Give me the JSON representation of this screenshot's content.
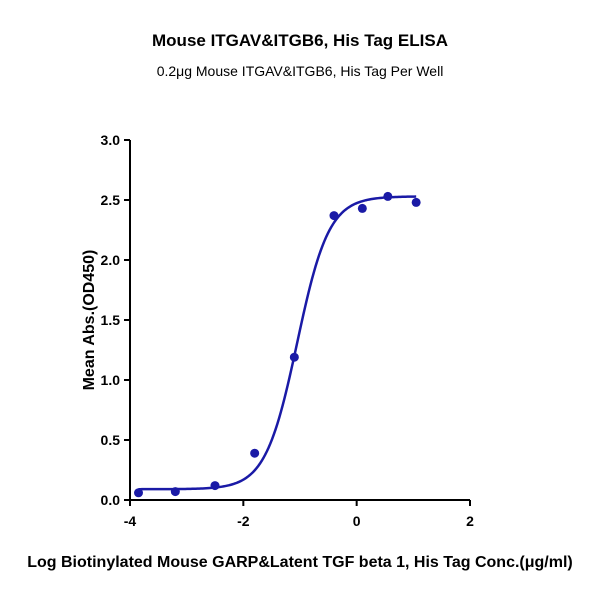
{
  "chart_data": {
    "type": "scatter",
    "title": "Mouse ITGAV&ITGB6, His Tag ELISA",
    "subtitle": "0.2μg Mouse ITGAV&ITGB6, His Tag Per Well",
    "xlabel": "Log Biotinylated Mouse GARP&Latent TGF beta 1, His Tag Conc.(μg/ml)",
    "ylabel": "Mean Abs.(OD450)",
    "xlim": [
      -4,
      2
    ],
    "ylim": [
      0,
      3.0
    ],
    "xticks": [
      "-4",
      "-2",
      "0",
      "2"
    ],
    "yticks": [
      "0.0",
      "0.5",
      "1.0",
      "1.5",
      "2.0",
      "2.5",
      "3.0"
    ],
    "grid": false,
    "color": "#1a1aa6",
    "points": {
      "x": [
        -3.85,
        -3.2,
        -2.5,
        -1.8,
        -1.1,
        -0.4,
        0.1,
        0.55,
        1.05
      ],
      "y": [
        0.06,
        0.07,
        0.12,
        0.39,
        1.19,
        2.37,
        2.43,
        2.53,
        2.48
      ]
    },
    "fit_curve": {
      "model": "4PL",
      "bottom": 0.09,
      "top": 2.53,
      "log_ec50": -1.05,
      "hill_slope": 1.55,
      "x_range": [
        -3.85,
        1.05
      ]
    }
  }
}
